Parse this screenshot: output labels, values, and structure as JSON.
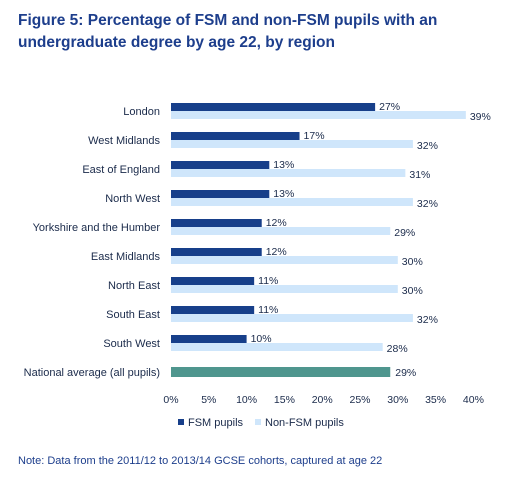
{
  "title": "Figure 5: Percentage of FSM and non-FSM pupils with an undergraduate degree by age 22, by region",
  "note": "Note: Data from the 2011/12 to 2013/14 GCSE cohorts, captured at age 22",
  "colors": {
    "fsm": "#173f8a",
    "non_fsm": "#cfe6fb",
    "national": "#4f968e"
  },
  "chart_data": {
    "type": "bar",
    "orientation": "horizontal",
    "categories": [
      "London",
      "West Midlands",
      "East of England",
      "North West",
      "Yorkshire and the Humber",
      "East Midlands",
      "North East",
      "South East",
      "South West"
    ],
    "series": [
      {
        "name": "FSM pupils",
        "values": [
          27,
          17,
          13,
          13,
          12,
          12,
          11,
          11,
          10
        ]
      },
      {
        "name": "Non-FSM pupils",
        "values": [
          39,
          32,
          31,
          32,
          29,
          30,
          30,
          32,
          28
        ]
      }
    ],
    "extra_bar": {
      "label": "National average (all pupils)",
      "value": 29
    },
    "xlim": [
      0,
      40
    ],
    "xticks": [
      0,
      5,
      10,
      15,
      20,
      25,
      30,
      35,
      40
    ],
    "tick_suffix": "%",
    "legend_position": "bottom",
    "grid": false
  }
}
